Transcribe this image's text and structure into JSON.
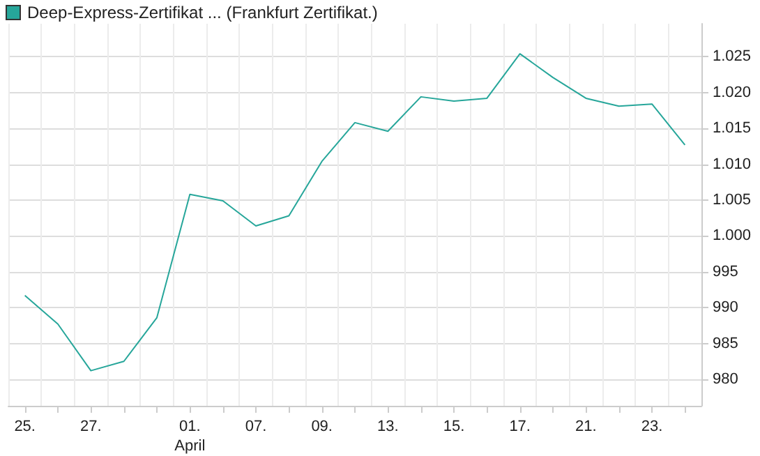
{
  "chart_data": {
    "type": "line",
    "categories": [
      "25.",
      null,
      "27.",
      null,
      null,
      "01.\nApril",
      null,
      "07.",
      null,
      "09.",
      null,
      "13.",
      null,
      "15.",
      null,
      "17.",
      null,
      "21.",
      null,
      "23.",
      null
    ],
    "series": [
      {
        "name": "Deep-Express-Zertifikat ... (Frankfurt Zertifikat.)",
        "color": "#26a69a",
        "values": [
          991.7,
          987.7,
          981.2,
          982.5,
          988.6,
          1005.8,
          1004.9,
          1001.4,
          1002.8,
          1010.4,
          1015.8,
          1014.6,
          1019.4,
          1018.8,
          1019.2,
          1025.4,
          1022.1,
          1019.2,
          1018.1,
          1018.4,
          1012.7
        ]
      }
    ],
    "ylim": [
      976.3,
      1029.6
    ],
    "yticks": [
      980,
      985,
      990,
      995,
      {
        "value": 1000,
        "label": "1.000"
      },
      {
        "value": 1005,
        "label": "1.005"
      },
      {
        "value": 1010,
        "label": "1.010"
      },
      {
        "value": 1015,
        "label": "1.015"
      },
      {
        "value": 1020,
        "label": "1.020"
      },
      {
        "value": 1025,
        "label": "1.025"
      }
    ],
    "grid": true,
    "legend": "top left",
    "marker": "none",
    "line_style": "solid"
  }
}
